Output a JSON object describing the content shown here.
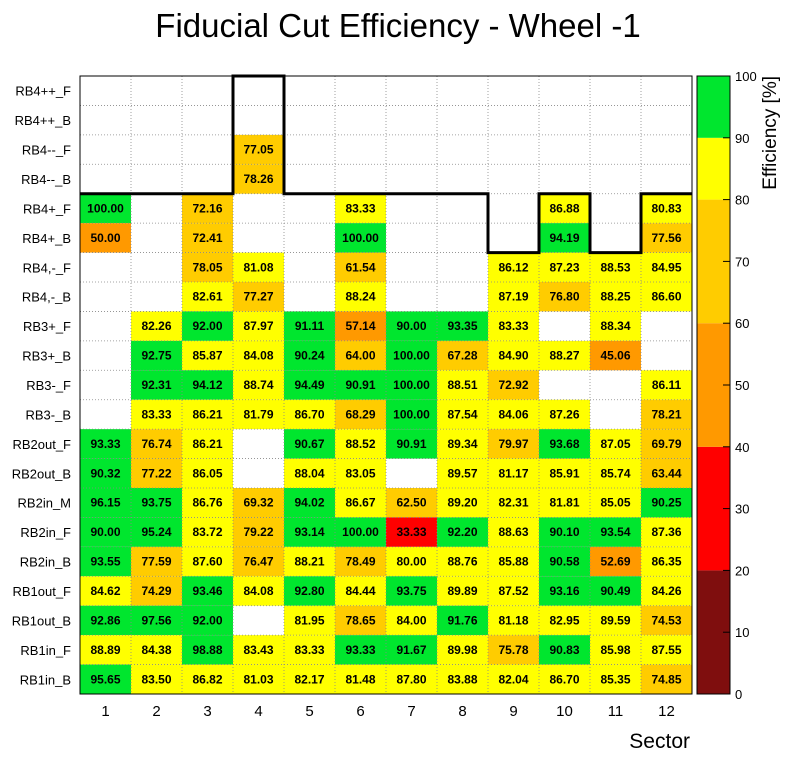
{
  "chart_data": {
    "type": "heatmap",
    "title": "Fiducial Cut Efficiency - Wheel -1",
    "xlabel": "Sector",
    "zlabel": "Efficiency [%]",
    "x_categories": [
      "1",
      "2",
      "3",
      "4",
      "5",
      "6",
      "7",
      "8",
      "9",
      "10",
      "11",
      "12"
    ],
    "y_categories": [
      "RB4++_F",
      "RB4++_B",
      "RB4--_F",
      "RB4--_B",
      "RB4+_F",
      "RB4+_B",
      "RB4,-_F",
      "RB4,-_B",
      "RB3+_F",
      "RB3+_B",
      "RB3-_F",
      "RB3-_B",
      "RB2out_F",
      "RB2out_B",
      "RB2in_M",
      "RB2in_F",
      "RB2in_B",
      "RB1out_F",
      "RB1out_B",
      "RB1in_F",
      "RB1in_B"
    ],
    "values": [
      [
        null,
        null,
        null,
        null,
        null,
        null,
        null,
        null,
        null,
        null,
        null,
        null
      ],
      [
        null,
        null,
        null,
        null,
        null,
        null,
        null,
        null,
        null,
        null,
        null,
        null
      ],
      [
        null,
        null,
        null,
        "77.05",
        null,
        null,
        null,
        null,
        null,
        null,
        null,
        null
      ],
      [
        null,
        null,
        null,
        "78.26",
        null,
        null,
        null,
        null,
        null,
        null,
        null,
        null
      ],
      [
        "100.00",
        null,
        "72.16",
        null,
        null,
        "83.33",
        null,
        null,
        null,
        "86.88",
        null,
        "80.83"
      ],
      [
        "50.00",
        null,
        "72.41",
        null,
        null,
        "100.00",
        null,
        null,
        null,
        "94.19",
        null,
        "77.56"
      ],
      [
        null,
        null,
        "78.05",
        "81.08",
        null,
        "61.54",
        null,
        null,
        "86.12",
        "87.23",
        "88.53",
        "84.95"
      ],
      [
        null,
        null,
        "82.61",
        "77.27",
        null,
        "88.24",
        null,
        null,
        "87.19",
        "76.80",
        "88.25",
        "86.60"
      ],
      [
        null,
        "82.26",
        "92.00",
        "87.97",
        "91.11",
        "57.14",
        "90.00",
        "93.35",
        "83.33",
        null,
        "88.34",
        null
      ],
      [
        null,
        "92.75",
        "85.87",
        "84.08",
        "90.24",
        "64.00",
        "100.00",
        "67.28",
        "84.90",
        "88.27",
        "45.06",
        null
      ],
      [
        null,
        "92.31",
        "94.12",
        "88.74",
        "94.49",
        "90.91",
        "100.00",
        "88.51",
        "72.92",
        null,
        null,
        "86.11"
      ],
      [
        null,
        "83.33",
        "86.21",
        "81.79",
        "86.70",
        "68.29",
        "100.00",
        "87.54",
        "84.06",
        "87.26",
        null,
        "78.21"
      ],
      [
        "93.33",
        "76.74",
        "86.21",
        null,
        "90.67",
        "88.52",
        "90.91",
        "89.34",
        "79.97",
        "93.68",
        "87.05",
        "69.79"
      ],
      [
        "90.32",
        "77.22",
        "86.05",
        null,
        "88.04",
        "83.05",
        null,
        "89.57",
        "81.17",
        "85.91",
        "85.74",
        "63.44"
      ],
      [
        "96.15",
        "93.75",
        "86.76",
        "69.32",
        "94.02",
        "86.67",
        "62.50",
        "89.20",
        "82.31",
        "81.81",
        "85.05",
        "90.25"
      ],
      [
        "90.00",
        "95.24",
        "83.72",
        "79.22",
        "93.14",
        "100.00",
        "33.33",
        "92.20",
        "88.63",
        "90.10",
        "93.54",
        "87.36"
      ],
      [
        "93.55",
        "77.59",
        "87.60",
        "76.47",
        "88.21",
        "78.49",
        "80.00",
        "88.76",
        "85.88",
        "90.58",
        "52.69",
        "86.35"
      ],
      [
        "84.62",
        "74.29",
        "93.46",
        "84.08",
        "92.80",
        "84.44",
        "93.75",
        "89.89",
        "87.52",
        "93.16",
        "90.49",
        "84.26"
      ],
      [
        "92.86",
        "97.56",
        "92.00",
        null,
        "81.95",
        "78.65",
        "84.00",
        "91.76",
        "81.18",
        "82.95",
        "89.59",
        "74.53"
      ],
      [
        "88.89",
        "84.38",
        "98.88",
        "83.43",
        "83.33",
        "93.33",
        "91.67",
        "89.98",
        "75.78",
        "90.83",
        "85.98",
        "87.55"
      ],
      [
        "95.65",
        "83.50",
        "86.82",
        "81.03",
        "82.17",
        "81.48",
        "87.80",
        "83.88",
        "82.04",
        "86.70",
        "85.35",
        "74.85"
      ]
    ],
    "zlim": [
      0,
      100
    ],
    "colorbar": {
      "ticks": [
        "0",
        "10",
        "20",
        "30",
        "40",
        "50",
        "60",
        "70",
        "80",
        "90",
        "100"
      ],
      "bands": [
        {
          "from": 0,
          "to": 20,
          "color": "#7f0e0e"
        },
        {
          "from": 20,
          "to": 40,
          "color": "#ff0000"
        },
        {
          "from": 40,
          "to": 60,
          "color": "#ff9900"
        },
        {
          "from": 60,
          "to": 80,
          "color": "#ffcc00"
        },
        {
          "from": 80,
          "to": 90,
          "color": "#ffff00"
        },
        {
          "from": 90,
          "to": 100,
          "color": "#00e62e"
        }
      ]
    },
    "grid": true
  }
}
